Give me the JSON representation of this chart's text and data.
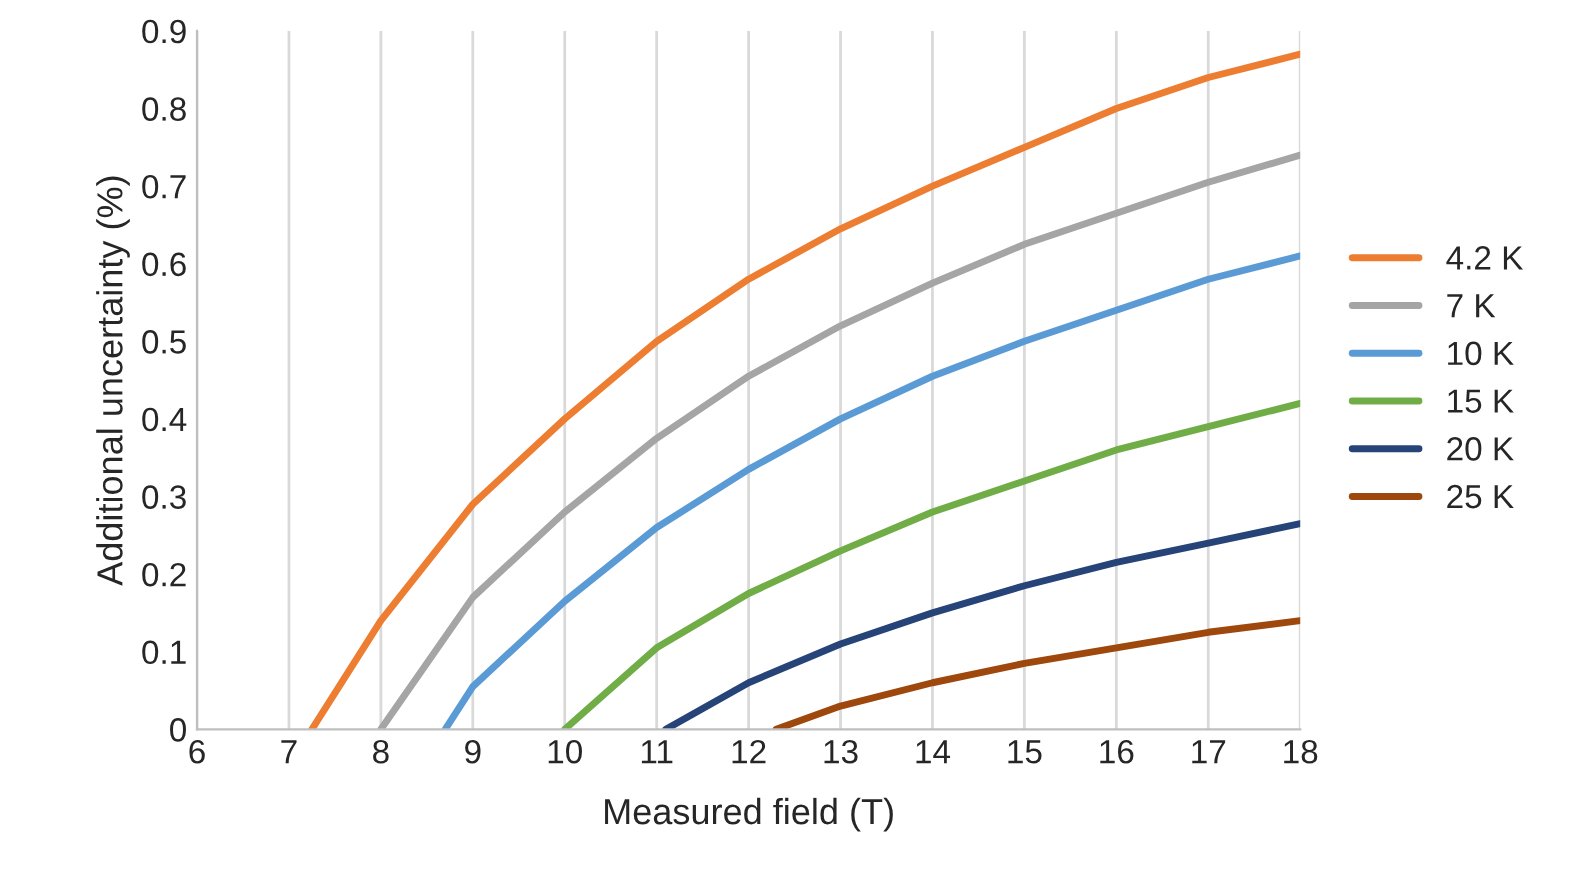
{
  "chart_data": {
    "type": "line",
    "xlabel": "Measured field (T)",
    "ylabel": "Additional uncertainty (%)",
    "xlim": [
      6,
      18
    ],
    "xticks": [
      6,
      7,
      8,
      9,
      10,
      11,
      12,
      13,
      14,
      15,
      16,
      17,
      18
    ],
    "ylim": [
      0,
      0.9
    ],
    "yticks": [
      {
        "value": 0,
        "label": "0"
      },
      0.1,
      0.2,
      0.3,
      0.4,
      0.5,
      0.6,
      0.7,
      0.8,
      0.9
    ],
    "grid": "x",
    "legend": "right",
    "marker": "none",
    "line_style": "solid",
    "series": [
      {
        "name": "4.2 K",
        "color": "#ed7d31",
        "x": [
          7.25,
          8,
          9,
          10,
          11,
          12,
          13,
          14,
          15,
          16,
          17,
          18
        ],
        "values": [
          0,
          0.14,
          0.29,
          0.4,
          0.5,
          0.58,
          0.645,
          0.7,
          0.75,
          0.8,
          0.84,
          0.87
        ]
      },
      {
        "name": "7 K",
        "color": "#a5a5a5",
        "x": [
          8,
          9,
          10,
          11,
          12,
          13,
          14,
          15,
          16,
          17,
          18
        ],
        "values": [
          0,
          0.17,
          0.28,
          0.375,
          0.455,
          0.52,
          0.575,
          0.625,
          0.665,
          0.705,
          0.74
        ]
      },
      {
        "name": "10 K",
        "color": "#5b9bd5",
        "x": [
          8.7,
          9,
          10,
          11,
          12,
          13,
          14,
          15,
          16,
          17,
          18
        ],
        "values": [
          0,
          0.055,
          0.165,
          0.26,
          0.335,
          0.4,
          0.455,
          0.5,
          0.54,
          0.58,
          0.61
        ]
      },
      {
        "name": "15 K",
        "color": "#70ad47",
        "x": [
          10,
          11,
          12,
          13,
          14,
          15,
          16,
          17,
          18
        ],
        "values": [
          0,
          0.105,
          0.175,
          0.23,
          0.28,
          0.32,
          0.36,
          0.39,
          0.42
        ]
      },
      {
        "name": "20 K",
        "color": "#264478",
        "x": [
          11.1,
          12,
          13,
          14,
          15,
          16,
          17,
          18
        ],
        "values": [
          0,
          0.06,
          0.11,
          0.15,
          0.185,
          0.215,
          0.24,
          0.265
        ]
      },
      {
        "name": "25 K",
        "color": "#9e480e",
        "x": [
          12.3,
          13,
          14,
          15,
          16,
          17,
          18
        ],
        "values": [
          0,
          0.03,
          0.06,
          0.085,
          0.105,
          0.125,
          0.14
        ]
      }
    ]
  }
}
